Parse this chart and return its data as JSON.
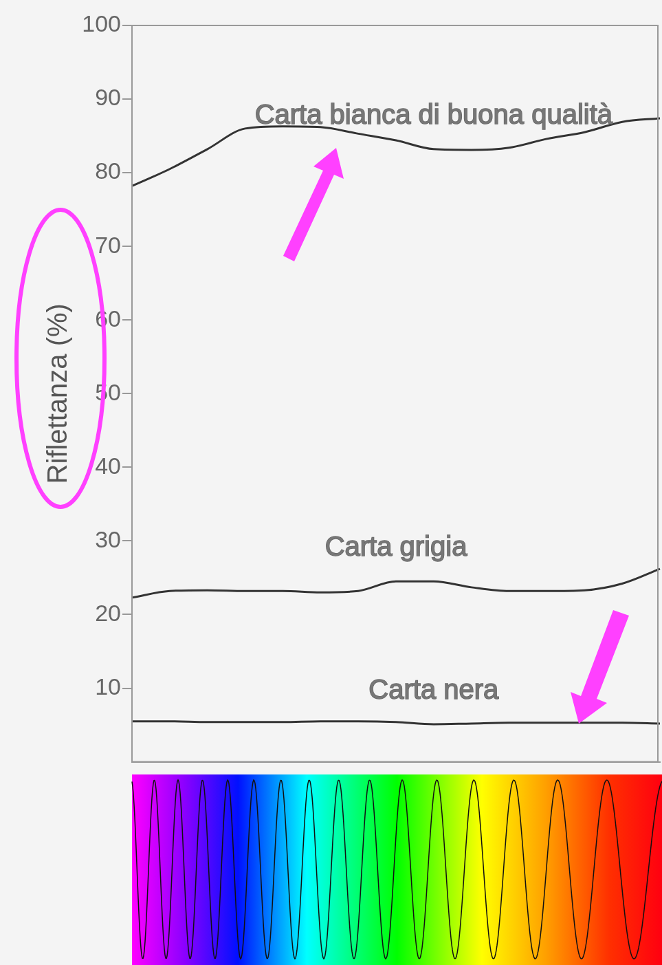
{
  "chart_data": {
    "type": "line",
    "ylabel": "Riflettanza (%)",
    "categories": [
      null,
      null,
      null,
      null,
      null,
      null,
      null,
      null,
      null,
      null,
      null,
      null,
      null,
      null,
      null
    ],
    "ylim": [
      0,
      100
    ],
    "yticks": [
      10,
      20,
      30,
      40,
      50,
      60,
      70,
      80,
      90,
      100
    ],
    "grid": false,
    "legend": false,
    "marker": "none",
    "line_style": "solid",
    "series": [
      {
        "name": "Carta bianca di buona qualità",
        "color": "#333333",
        "values": [
          78.2,
          80.5,
          83.2,
          86.0,
          86.3,
          86.2,
          85.3,
          84.4,
          83.2,
          83.1,
          83.4,
          84.6,
          85.5,
          86.9,
          87.4
        ]
      },
      {
        "name": "Carta grigia",
        "color": "#333333",
        "values": [
          22.3,
          23.2,
          23.3,
          23.2,
          23.2,
          23.0,
          23.2,
          24.5,
          24.5,
          23.7,
          23.2,
          23.2,
          23.3,
          24.2,
          26.2
        ]
      },
      {
        "name": "Carta nera",
        "color": "#333333",
        "values": [
          5.5,
          5.5,
          5.4,
          5.4,
          5.4,
          5.5,
          5.5,
          5.4,
          5.1,
          5.2,
          5.3,
          5.3,
          5.3,
          5.3,
          5.2
        ]
      }
    ]
  }
}
